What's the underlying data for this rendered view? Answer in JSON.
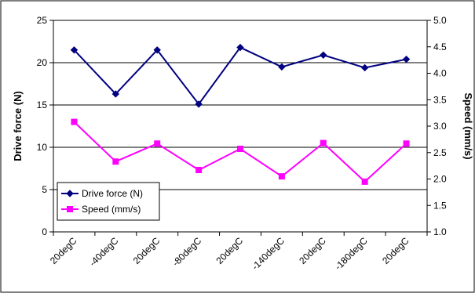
{
  "chart_data": {
    "type": "line",
    "categories": [
      "20degC",
      "-40degC",
      "20degC",
      "-80degC",
      "20degC",
      "-140degC",
      "20degC",
      "-180degC",
      "20degC"
    ],
    "series": [
      {
        "name": "Drive force (N)",
        "axis": "left",
        "color": "#000080",
        "marker": "diamond",
        "values": [
          21.5,
          16.3,
          21.5,
          15.1,
          21.8,
          19.5,
          20.9,
          19.4,
          20.4
        ]
      },
      {
        "name": "Speed (mm/s)",
        "axis": "right",
        "color": "#FF00FF",
        "marker": "square",
        "values": [
          3.08,
          2.33,
          2.67,
          2.17,
          2.57,
          2.05,
          2.68,
          1.95,
          2.67
        ]
      }
    ],
    "ylabel": "Drive force (N)",
    "y2label": "Speed (mm/s)",
    "ylim": [
      0,
      25
    ],
    "y2lim": [
      1.0,
      5.0
    ],
    "yticks": [
      "0",
      "5",
      "10",
      "15",
      "20",
      "25"
    ],
    "y2ticks": [
      "1.0",
      "1.5",
      "2.0",
      "2.5",
      "3.0",
      "3.5",
      "4.0",
      "4.5",
      "5.0"
    ],
    "grid": true,
    "legend_position": "bottom-left"
  }
}
